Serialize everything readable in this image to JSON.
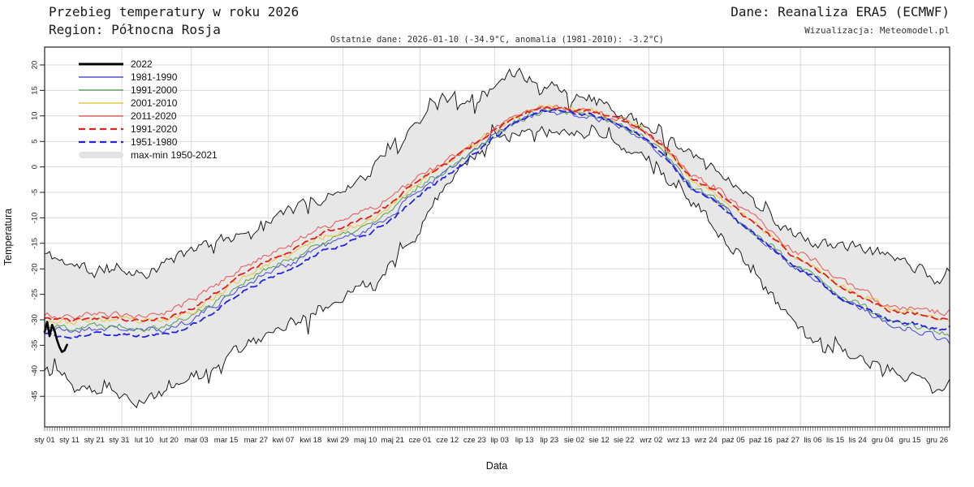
{
  "header": {
    "title": "Przebieg temperatury w roku 2026",
    "region": "Region: Północna Rosja",
    "source": "Dane: Reanaliza ERA5 (ECMWF)",
    "credit": "Wizualizacja: Meteomodel.pl",
    "subtitle": "Ostatnie dane: 2026-01-10 (-34.9°C, anomalia (1981-2010): -3.2°C)"
  },
  "axes": {
    "y_title": "Temperatura",
    "x_title": "Data",
    "y_ticks": [
      20,
      15,
      10,
      5,
      0,
      -5,
      -10,
      -15,
      -20,
      -25,
      -30,
      -35,
      -40,
      -45
    ],
    "x_ticks": [
      {
        "label": "sty 01",
        "day": 1
      },
      {
        "label": "sty 11",
        "day": 11
      },
      {
        "label": "sty 21",
        "day": 21
      },
      {
        "label": "sty 31",
        "day": 31
      },
      {
        "label": "lut 10",
        "day": 41
      },
      {
        "label": "lut 20",
        "day": 51
      },
      {
        "label": "mar 03",
        "day": 62
      },
      {
        "label": "mar 15",
        "day": 74
      },
      {
        "label": "mar 27",
        "day": 86
      },
      {
        "label": "kwi 07",
        "day": 97
      },
      {
        "label": "kwi 18",
        "day": 108
      },
      {
        "label": "kwi 29",
        "day": 119
      },
      {
        "label": "maj 10",
        "day": 130
      },
      {
        "label": "maj 21",
        "day": 141
      },
      {
        "label": "cze 01",
        "day": 152
      },
      {
        "label": "cze 12",
        "day": 163
      },
      {
        "label": "cze 23",
        "day": 174
      },
      {
        "label": "lip 03",
        "day": 184
      },
      {
        "label": "lip 13",
        "day": 194
      },
      {
        "label": "lip 23",
        "day": 204
      },
      {
        "label": "sie 02",
        "day": 214
      },
      {
        "label": "sie 12",
        "day": 224
      },
      {
        "label": "sie 22",
        "day": 234
      },
      {
        "label": "wrz 02",
        "day": 245
      },
      {
        "label": "wrz 13",
        "day": 256
      },
      {
        "label": "wrz 24",
        "day": 267
      },
      {
        "label": "paź 05",
        "day": 278
      },
      {
        "label": "paź 16",
        "day": 289
      },
      {
        "label": "paź 27",
        "day": 300
      },
      {
        "label": "lis 06",
        "day": 310
      },
      {
        "label": "lis 15",
        "day": 319
      },
      {
        "label": "lis 24",
        "day": 328
      },
      {
        "label": "gru 04",
        "day": 338
      },
      {
        "label": "gru 15",
        "day": 349
      },
      {
        "label": "gru 26",
        "day": 360
      }
    ]
  },
  "legend": [
    {
      "label": "2022",
      "color": "#000000",
      "variant": "bold"
    },
    {
      "label": "1981-1990",
      "color": "#5252d6",
      "variant": "thin"
    },
    {
      "label": "1991-2000",
      "color": "#5ea45e",
      "variant": "thin"
    },
    {
      "label": "2001-2010",
      "color": "#e8c93e",
      "variant": "thin"
    },
    {
      "label": "2011-2020",
      "color": "#e66060",
      "variant": "thin"
    },
    {
      "label": "1991-2020",
      "color": "#dd2222",
      "variant": "dashed"
    },
    {
      "label": "1951-1980",
      "color": "#2424dd",
      "variant": "dashed"
    },
    {
      "label": "max-min 1950-2021",
      "color": "#e3e3e3",
      "variant": "band"
    }
  ],
  "chart_data": {
    "type": "line",
    "x_unit": "day-of-year",
    "x_range": [
      1,
      365
    ],
    "ylim": [
      -47,
      23
    ],
    "grid": "on",
    "y_gridlines": [
      20,
      15,
      10,
      5,
      0,
      -5,
      -10,
      -15,
      -20,
      -25,
      -30,
      -35,
      -40,
      -45
    ],
    "month_start_days": [
      1,
      32,
      60,
      91,
      121,
      152,
      182,
      213,
      244,
      274,
      305,
      335
    ],
    "key_days": [
      1,
      11,
      21,
      31,
      41,
      51,
      61,
      71,
      81,
      91,
      101,
      111,
      121,
      131,
      141,
      151,
      161,
      171,
      181,
      191,
      201,
      211,
      221,
      231,
      241,
      251,
      261,
      271,
      281,
      291,
      301,
      311,
      321,
      331,
      341,
      351,
      361,
      365
    ],
    "envelope": {
      "label": "max-min 1950-2021",
      "fill": "#e7e7e7",
      "edge": "#1a1a1a",
      "max": [
        -17,
        -19,
        -21,
        -20,
        -21,
        -19,
        -16,
        -14.5,
        -12.5,
        -10,
        -8.5,
        -6.5,
        -4.5,
        -1.5,
        4,
        9,
        13.5,
        14,
        15.5,
        18.5,
        16.5,
        15,
        13.5,
        10.5,
        8.5,
        6.5,
        3,
        0,
        -5,
        -9,
        -13,
        -15.5,
        -15,
        -16.5,
        -17,
        -19.5,
        -22.5,
        -20
      ],
      "min": [
        -40,
        -42,
        -43.5,
        -44.5,
        -46.5,
        -43.5,
        -41,
        -38,
        -35,
        -33,
        -30.5,
        -28.5,
        -26,
        -23,
        -18.5,
        -13,
        -4,
        1.5,
        5,
        6.5,
        7,
        6.5,
        6,
        4.5,
        1.5,
        -2.5,
        -6,
        -12,
        -18,
        -24,
        -30,
        -34,
        -36,
        -38,
        -39.5,
        -41.5,
        -45,
        -42.5
      ]
    },
    "series": [
      {
        "id": "s1981",
        "label": "1981-1990",
        "color": "#5252d6",
        "variant": "thin",
        "values": [
          -31.7,
          -32.2,
          -31.7,
          -31.7,
          -32.2,
          -31.7,
          -29.7,
          -26.7,
          -23.2,
          -20.7,
          -18.7,
          -15.7,
          -14.2,
          -12.2,
          -9.2,
          -4.7,
          -1.5,
          2,
          5.8,
          8.8,
          10.8,
          10.3,
          9.8,
          8.3,
          6.3,
          1.8,
          -4.2,
          -6.7,
          -11.2,
          -14.7,
          -19.2,
          -21.7,
          -25.7,
          -28,
          -31,
          -32,
          -33.5,
          -34.5
        ]
      },
      {
        "id": "s1991",
        "label": "1991-2000",
        "color": "#5ea45e",
        "variant": "thin",
        "values": [
          -31,
          -31.5,
          -31,
          -31,
          -31.5,
          -31,
          -29,
          -26,
          -22.5,
          -20,
          -18,
          -15,
          -13.5,
          -11.5,
          -8.5,
          -4,
          -1,
          2.5,
          6,
          9,
          11,
          10.5,
          10,
          8.5,
          6.5,
          2.5,
          -3.5,
          -6.5,
          -11,
          -14.5,
          -19,
          -21.5,
          -25.5,
          -27.5,
          -30.5,
          -31,
          -32.5,
          -32.8
        ]
      },
      {
        "id": "s2001",
        "label": "2001-2010",
        "color": "#e8c93e",
        "variant": "thin",
        "values": [
          -30,
          -30.5,
          -30,
          -30,
          -30.5,
          -30,
          -28,
          -25,
          -21.5,
          -19,
          -17,
          -14,
          -12.5,
          -10.5,
          -7.5,
          -3,
          0,
          3.5,
          7,
          10,
          12,
          11.5,
          11,
          9.5,
          7.5,
          3.5,
          -2.5,
          -5,
          -9,
          -12.5,
          -17,
          -19.5,
          -23.5,
          -25.5,
          -28,
          -28.5,
          -30,
          -30.2
        ]
      },
      {
        "id": "s2011",
        "label": "2011-2020",
        "color": "#e66060",
        "variant": "thin",
        "values": [
          -29,
          -29.5,
          -29,
          -29,
          -29.5,
          -28.5,
          -26,
          -23,
          -19.5,
          -17,
          -15,
          -12,
          -10.5,
          -8.5,
          -6,
          -2,
          0.5,
          4,
          7,
          10,
          12,
          11.5,
          11,
          9.5,
          7.5,
          4,
          -1.5,
          -4,
          -8,
          -11.5,
          -16,
          -18.5,
          -22,
          -24.5,
          -27.5,
          -28,
          -28.5,
          -28.3
        ]
      },
      {
        "id": "s1951_80",
        "label": "1951-1980",
        "color": "#2424dd",
        "variant": "dashed",
        "values": [
          -32.8,
          -33.3,
          -32.8,
          -32.8,
          -33.3,
          -32.8,
          -30.8,
          -27.8,
          -24.3,
          -21.8,
          -19.8,
          -16.8,
          -15.3,
          -13.3,
          -10.3,
          -5.8,
          -2.3,
          1.5,
          5.5,
          9,
          11.2,
          10.8,
          10.2,
          8.5,
          6.2,
          1.7,
          -4.3,
          -6.8,
          -11.3,
          -14.8,
          -19.3,
          -21.8,
          -25.8,
          -27.8,
          -30.3,
          -30.8,
          -31.8,
          -31.5
        ]
      },
      {
        "id": "s1991_20",
        "label": "1991-2020",
        "color": "#dd2222",
        "variant": "dashed",
        "values": [
          -29.7,
          -30.2,
          -29.7,
          -29.7,
          -30.2,
          -29.7,
          -27.5,
          -24.5,
          -21,
          -18.5,
          -16.3,
          -13.3,
          -11.8,
          -9.8,
          -7,
          -2.7,
          0,
          3.4,
          6.9,
          9.9,
          11.9,
          11.4,
          10.9,
          9.4,
          7.4,
          3.8,
          -2.2,
          -4.7,
          -9.2,
          -12.7,
          -17.2,
          -19.7,
          -23.7,
          -25.7,
          -28.2,
          -28.7,
          -29.7,
          -29.8
        ]
      },
      {
        "id": "s2022",
        "label": "2022",
        "color": "#000000",
        "variant": "bold",
        "days": [
          1,
          2,
          3,
          4,
          5,
          6,
          7,
          8,
          9,
          10
        ],
        "values": [
          -32.4,
          -30.4,
          -33.2,
          -31.0,
          -32.2,
          -34.0,
          -35.4,
          -36.3,
          -36.0,
          -34.9
        ]
      }
    ]
  }
}
